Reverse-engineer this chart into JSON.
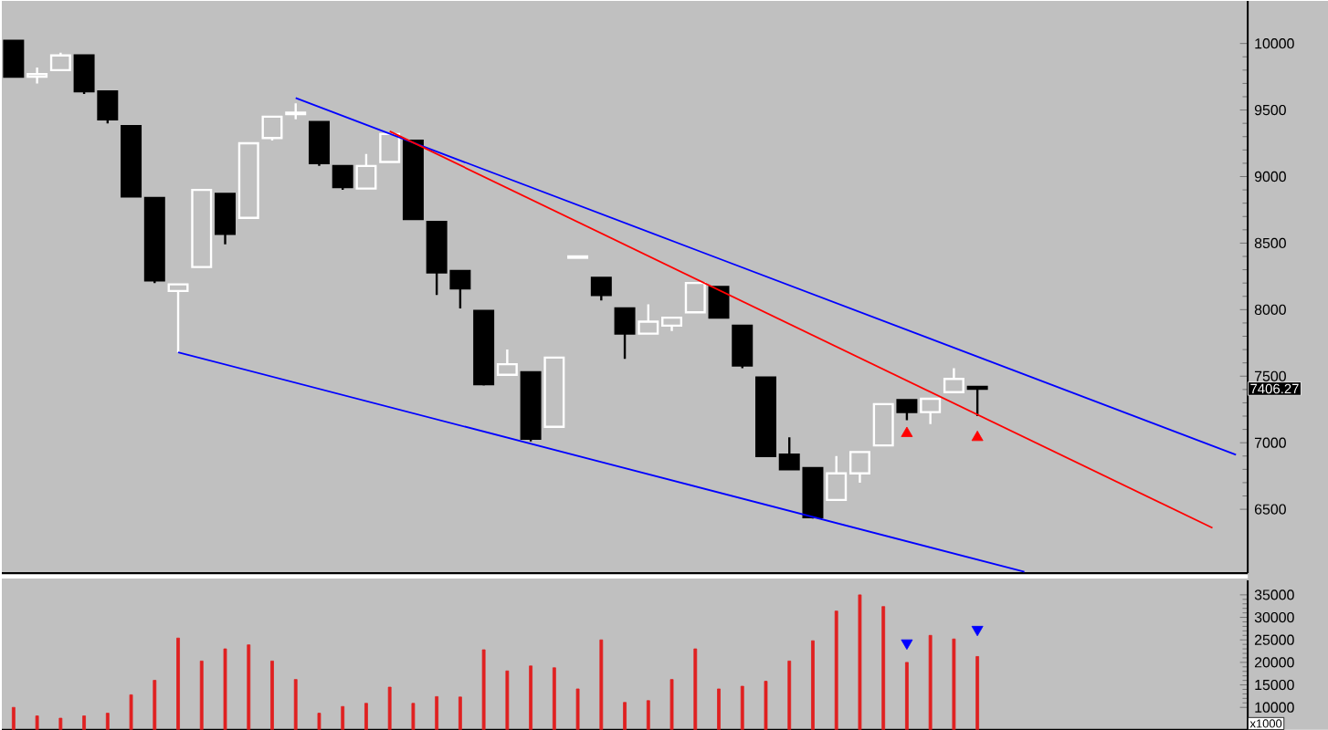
{
  "chart_data": [
    {
      "type": "candlestick",
      "categories": [
        null,
        null,
        null,
        null,
        null,
        null,
        null,
        null,
        null,
        null,
        null,
        null,
        null,
        null,
        null,
        null,
        null,
        null,
        null,
        null,
        null,
        null,
        null,
        null,
        null,
        null,
        null,
        null,
        null,
        null,
        null,
        null,
        null,
        null,
        null,
        null,
        null,
        null,
        null,
        null,
        null,
        null,
        null,
        null,
        null,
        null,
        null,
        null,
        null,
        null,
        null,
        null,
        null
      ],
      "ohlc": [
        [
          10020,
          10020,
          9750,
          9750
        ],
        [
          9750,
          9820,
          9700,
          9770
        ],
        [
          9800,
          9930,
          9800,
          9910
        ],
        [
          9910,
          9910,
          9620,
          9640
        ],
        [
          9640,
          9640,
          9400,
          9430
        ],
        [
          9380,
          9380,
          8850,
          8850
        ],
        [
          8840,
          8840,
          8200,
          8220
        ],
        [
          8140,
          8190,
          7680,
          8190
        ],
        [
          8320,
          8900,
          8320,
          8900
        ],
        [
          8870,
          8870,
          8490,
          8570
        ],
        [
          8690,
          9250,
          8690,
          9250
        ],
        [
          9290,
          9450,
          9270,
          9450
        ],
        [
          9470,
          9550,
          9430,
          9480
        ],
        [
          9410,
          9410,
          9080,
          9100
        ],
        [
          9080,
          9080,
          8900,
          8920
        ],
        [
          8910,
          9170,
          8910,
          9080
        ],
        [
          9110,
          9320,
          9110,
          9320
        ],
        [
          9270,
          9270,
          8680,
          8680
        ],
        [
          8660,
          8660,
          8110,
          8280
        ],
        [
          8290,
          8290,
          8010,
          8160
        ],
        [
          7990,
          7990,
          7430,
          7440
        ],
        [
          7510,
          7700,
          7510,
          7590
        ],
        [
          7530,
          7530,
          7010,
          7030
        ],
        [
          7120,
          7640,
          7120,
          7640
        ],
        [
          8390,
          8400,
          8390,
          8400
        ],
        [
          8240,
          8240,
          8070,
          8110
        ],
        [
          8010,
          8010,
          7630,
          7820
        ],
        [
          7820,
          8040,
          7820,
          7910
        ],
        [
          7880,
          7940,
          7840,
          7940
        ],
        [
          7980,
          8200,
          7980,
          8200
        ],
        [
          8170,
          8170,
          7940,
          7940
        ],
        [
          7880,
          7880,
          7560,
          7580
        ],
        [
          7490,
          7490,
          6900,
          6900
        ],
        [
          6910,
          7040,
          6800,
          6800
        ],
        [
          6810,
          6810,
          6430,
          6440
        ],
        [
          6570,
          6900,
          6570,
          6770
        ],
        [
          6770,
          6930,
          6700,
          6930
        ],
        [
          6980,
          7290,
          6980,
          7290
        ],
        [
          7320,
          7320,
          7170,
          7230
        ],
        [
          7230,
          7330,
          7140,
          7330
        ],
        [
          7380,
          7560,
          7380,
          7480
        ],
        [
          7420,
          7420,
          7200,
          7406.27
        ],
        null,
        null,
        null,
        null,
        null,
        null,
        null,
        null,
        null,
        null,
        null
      ],
      "ylim": [
        6020,
        10320
      ],
      "yticks": [
        6500,
        7000,
        7500,
        8000,
        8500,
        9000,
        9500,
        10000
      ],
      "tick_labels": "y",
      "annotations": [
        "7406.27"
      ],
      "series": [
        {
          "type": "line",
          "values": [
            null,
            null,
            null,
            null,
            null,
            null,
            null,
            null,
            null,
            null,
            null,
            null,
            9590,
            null,
            null,
            null,
            null,
            null,
            null,
            null,
            null,
            null,
            null,
            null,
            null,
            null,
            null,
            null,
            null,
            null,
            null,
            null,
            null,
            null,
            null,
            null,
            null,
            null,
            null,
            null,
            null,
            null,
            null,
            null,
            null,
            null,
            null,
            null,
            null,
            null,
            null,
            null,
            6910
          ],
          "color": "#0000ff"
        },
        {
          "type": "line",
          "values": [
            null,
            null,
            null,
            null,
            null,
            null,
            null,
            7680,
            null,
            null,
            null,
            null,
            null,
            null,
            null,
            null,
            null,
            null,
            null,
            null,
            null,
            null,
            null,
            null,
            null,
            null,
            null,
            null,
            null,
            null,
            null,
            null,
            null,
            null,
            null,
            null,
            null,
            null,
            null,
            null,
            null,
            null,
            null,
            6030,
            null,
            null,
            null,
            null,
            null,
            null,
            null,
            null,
            null
          ],
          "color": "#0000ff"
        },
        {
          "type": "line",
          "values": [
            null,
            null,
            null,
            null,
            null,
            null,
            null,
            null,
            null,
            null,
            null,
            null,
            null,
            null,
            null,
            null,
            9340,
            null,
            null,
            null,
            null,
            null,
            null,
            null,
            null,
            null,
            null,
            null,
            null,
            null,
            null,
            null,
            null,
            null,
            null,
            null,
            null,
            null,
            null,
            null,
            null,
            null,
            null,
            null,
            null,
            null,
            null,
            null,
            null,
            null,
            null,
            6360,
            null
          ],
          "color": "#ff0000"
        },
        {
          "type": "scatter",
          "values": [
            null,
            null,
            null,
            null,
            null,
            null,
            null,
            null,
            null,
            null,
            null,
            null,
            null,
            null,
            null,
            null,
            null,
            null,
            null,
            null,
            null,
            null,
            null,
            null,
            null,
            null,
            null,
            null,
            null,
            null,
            null,
            null,
            null,
            null,
            null,
            null,
            null,
            null,
            7070,
            null,
            null,
            7040,
            null,
            null,
            null,
            null,
            null,
            null,
            null,
            null,
            null,
            null,
            null
          ],
          "color": "#ff0000",
          "marker": "triangle"
        }
      ]
    },
    {
      "type": "bar",
      "categories": [
        null,
        null,
        null,
        null,
        null,
        null,
        null,
        null,
        null,
        null,
        null,
        null,
        null,
        null,
        null,
        null,
        null,
        null,
        null,
        null,
        null,
        null,
        null,
        null,
        null,
        null,
        null,
        null,
        null,
        null,
        null,
        null,
        null,
        null,
        null,
        null,
        null,
        null,
        null,
        null,
        null,
        null,
        null,
        null,
        null,
        null,
        null,
        null,
        null,
        null,
        null,
        null,
        null
      ],
      "values": [
        10000,
        8100,
        7600,
        8100,
        8700,
        12800,
        16000,
        25400,
        20300,
        23000,
        23900,
        20300,
        16200,
        8700,
        10200,
        10900,
        14500,
        10900,
        12400,
        12300,
        22800,
        18100,
        19200,
        18800,
        14100,
        25000,
        11100,
        11500,
        16200,
        23000,
        14100,
        14700,
        15800,
        20300,
        24800,
        31400,
        35000,
        32400,
        20000,
        26000,
        25200,
        21300,
        null,
        null,
        null,
        null,
        null,
        null,
        null,
        null,
        null,
        null,
        null
      ],
      "color": "#e02020",
      "ylim": [
        5000,
        38200
      ],
      "yticks": [
        10000,
        15000,
        20000,
        25000,
        30000,
        35000
      ],
      "tick_labels": "y",
      "annotations": [
        "x1000"
      ],
      "series": [
        {
          "type": "scatter",
          "values": [
            null,
            null,
            null,
            null,
            null,
            null,
            null,
            null,
            null,
            null,
            null,
            null,
            null,
            null,
            null,
            null,
            null,
            null,
            null,
            null,
            null,
            null,
            null,
            null,
            null,
            null,
            null,
            null,
            null,
            null,
            null,
            null,
            null,
            null,
            null,
            null,
            null,
            null,
            24300,
            null,
            null,
            27300,
            null,
            null,
            null,
            null,
            null,
            null,
            null,
            null,
            null,
            null,
            null
          ],
          "color": "#0000ff",
          "marker": "triangle"
        }
      ]
    }
  ]
}
